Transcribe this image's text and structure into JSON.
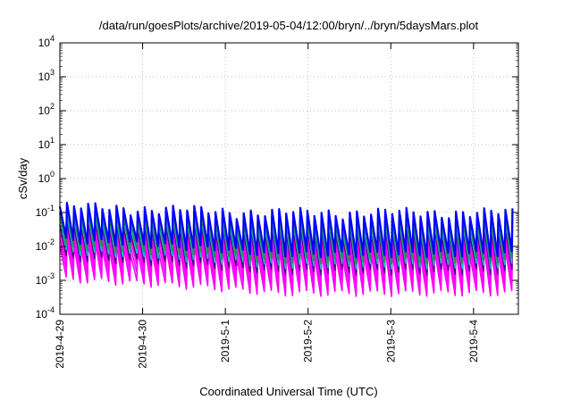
{
  "chart_data": {
    "type": "line",
    "title": "/data/run/goesPlots/archive/2019-05-04/12:00/bryn/../bryn/5daysMars.plot",
    "xlabel": "Coordinated Universal Time (UTC)",
    "ylabel": "cSv/day",
    "x_range": [
      "2019-04-29",
      "2019-05-04T13:00"
    ],
    "x_ticks": [
      "2019-4-29",
      "2019-4-30",
      "2019-5-1",
      "2019-5-2",
      "2019-5-3",
      "2019-5-4"
    ],
    "y_scale": "log",
    "ylim": [
      0.0001,
      10000
    ],
    "y_ticks": [
      {
        "base": "10",
        "exp": "-4"
      },
      {
        "base": "10",
        "exp": "-3"
      },
      {
        "base": "10",
        "exp": "-2"
      },
      {
        "base": "10",
        "exp": "-1"
      },
      {
        "base": "10",
        "exp": "0"
      },
      {
        "base": "10",
        "exp": "1"
      },
      {
        "base": "10",
        "exp": "2"
      },
      {
        "base": "10",
        "exp": "3"
      },
      {
        "base": "10",
        "exp": "4"
      }
    ],
    "grid": true,
    "legend": "none",
    "oscillation": {
      "cycles_per_day": 11.7,
      "peak_early": 0.15,
      "trough_early": 0.0025,
      "peak_late": 0.1,
      "trough_late": 0.001
    },
    "series": [
      {
        "color": "#0000ff",
        "scale": 1.0
      },
      {
        "color": "#2e8b57",
        "scale": 0.65
      },
      {
        "color": "#00c8c8",
        "scale": 0.45
      },
      {
        "color": "#4b0082",
        "scale": 0.3
      },
      {
        "color": "#ff00ff",
        "scale": 0.2
      },
      {
        "color": "#ff00ff",
        "scale": 0.12
      },
      {
        "color": "#ff00ff",
        "scale": 0.07
      }
    ]
  }
}
